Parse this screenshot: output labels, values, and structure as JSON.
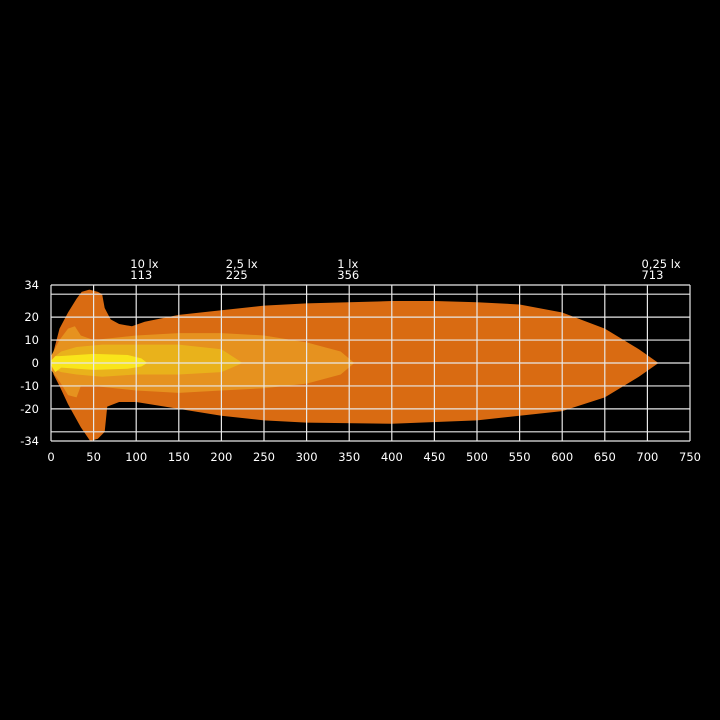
{
  "chart_data": {
    "type": "area",
    "title": "",
    "xlabel": "",
    "ylabel": "",
    "xlim": [
      0,
      750
    ],
    "ylim": [
      -34,
      34
    ],
    "grid": true,
    "x_ticks": [
      0,
      50,
      100,
      150,
      200,
      250,
      300,
      350,
      400,
      450,
      500,
      550,
      600,
      650,
      700,
      750
    ],
    "y_ticks": [
      34,
      20,
      10,
      0,
      -10,
      -20,
      -34
    ],
    "y_gridlines": [
      34,
      30,
      20,
      10,
      0,
      -10,
      -20,
      -30,
      -34
    ],
    "annotations": [
      {
        "lux": "10 lx",
        "distance": "113",
        "x": 113
      },
      {
        "lux": "2,5 lx",
        "distance": "225",
        "x": 225
      },
      {
        "lux": "1 lx",
        "distance": "356",
        "x": 356
      },
      {
        "lux": "0,25 lx",
        "distance": "713",
        "x": 713
      }
    ],
    "series": [
      {
        "label": "0,25 lx",
        "color": "#d96b12",
        "points": [
          [
            0,
            0
          ],
          [
            3,
            5
          ],
          [
            10,
            15
          ],
          [
            20,
            22
          ],
          [
            30,
            28
          ],
          [
            36,
            31
          ],
          [
            45,
            32
          ],
          [
            55,
            31
          ],
          [
            60,
            30
          ],
          [
            63,
            24
          ],
          [
            70,
            19
          ],
          [
            80,
            17
          ],
          [
            95,
            16
          ],
          [
            110,
            18
          ],
          [
            150,
            21
          ],
          [
            200,
            23
          ],
          [
            250,
            25
          ],
          [
            300,
            26
          ],
          [
            400,
            27
          ],
          [
            450,
            27
          ],
          [
            500,
            26.5
          ],
          [
            550,
            25.5
          ],
          [
            600,
            22
          ],
          [
            650,
            15
          ],
          [
            690,
            6
          ],
          [
            713,
            0
          ],
          [
            690,
            -6
          ],
          [
            650,
            -15
          ],
          [
            600,
            -21
          ],
          [
            500,
            -25
          ],
          [
            400,
            -26.5
          ],
          [
            300,
            -26
          ],
          [
            250,
            -25
          ],
          [
            200,
            -23
          ],
          [
            150,
            -20
          ],
          [
            100,
            -17
          ],
          [
            80,
            -17
          ],
          [
            66,
            -19
          ],
          [
            63,
            -30
          ],
          [
            55,
            -33
          ],
          [
            46,
            -34
          ],
          [
            35,
            -28
          ],
          [
            20,
            -18
          ],
          [
            10,
            -10
          ],
          [
            3,
            -5
          ]
        ]
      },
      {
        "label": "1 lx",
        "color": "#e6921f",
        "points": [
          [
            0,
            3
          ],
          [
            10,
            10
          ],
          [
            20,
            15
          ],
          [
            28,
            16
          ],
          [
            35,
            12
          ],
          [
            50,
            10
          ],
          [
            100,
            12
          ],
          [
            150,
            13
          ],
          [
            200,
            13
          ],
          [
            250,
            12
          ],
          [
            300,
            9
          ],
          [
            340,
            5
          ],
          [
            356,
            0
          ],
          [
            340,
            -5
          ],
          [
            300,
            -9
          ],
          [
            250,
            -11
          ],
          [
            200,
            -12
          ],
          [
            150,
            -13
          ],
          [
            100,
            -12
          ],
          [
            50,
            -10
          ],
          [
            35,
            -10
          ],
          [
            30,
            -15
          ],
          [
            20,
            -14
          ],
          [
            10,
            -8
          ],
          [
            0,
            -3
          ]
        ]
      },
      {
        "label": "2,5 lx",
        "color": "#e9b21b",
        "points": [
          [
            5,
            3
          ],
          [
            12,
            5
          ],
          [
            30,
            7
          ],
          [
            60,
            8
          ],
          [
            100,
            8
          ],
          [
            150,
            8
          ],
          [
            200,
            6
          ],
          [
            225,
            0
          ],
          [
            200,
            -4
          ],
          [
            150,
            -5
          ],
          [
            100,
            -5
          ],
          [
            60,
            -6
          ],
          [
            30,
            -5
          ],
          [
            12,
            -4
          ],
          [
            5,
            -3
          ]
        ]
      },
      {
        "label": "10 lx",
        "color": "#f9e51a",
        "points": [
          [
            0,
            1
          ],
          [
            5,
            3
          ],
          [
            10,
            3
          ],
          [
            50,
            4
          ],
          [
            90,
            3.5
          ],
          [
            106,
            2
          ],
          [
            113,
            0
          ],
          [
            106,
            -1.5
          ],
          [
            90,
            -2.5
          ],
          [
            50,
            -3
          ],
          [
            12,
            -2
          ],
          [
            5,
            -4
          ],
          [
            0,
            -1
          ]
        ]
      }
    ]
  }
}
